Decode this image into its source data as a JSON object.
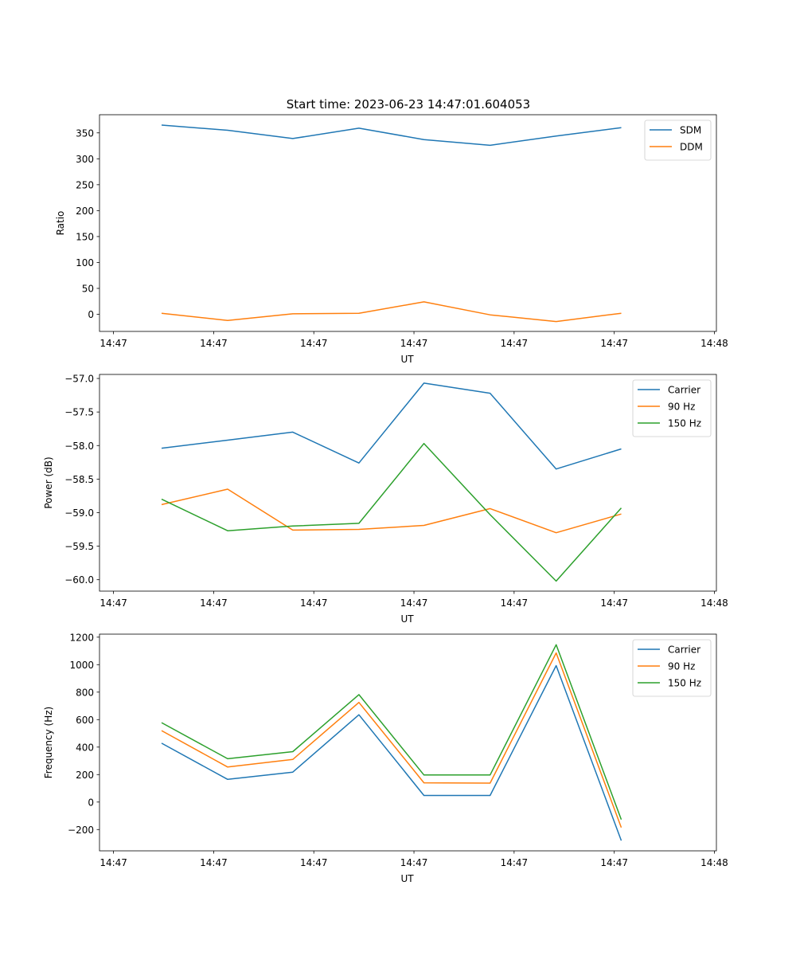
{
  "title": "Start time: 2023-06-23 14:47:01.604053",
  "chart_data": [
    {
      "type": "line",
      "xlabel": "UT",
      "ylabel": "Ratio",
      "x_tick_labels": [
        "14:47",
        "14:47",
        "14:47",
        "14:47",
        "14:47",
        "14:47",
        "14:48"
      ],
      "x_tick_values": [
        0,
        10,
        20,
        30,
        40,
        50,
        60
      ],
      "xlim": [
        -1.4,
        60.2
      ],
      "yticks": [
        0,
        50,
        100,
        150,
        200,
        250,
        300,
        350
      ],
      "ylim": [
        -33,
        385
      ],
      "legend": "top-right",
      "series": [
        {
          "name": "SDM",
          "color": "#1f77b4",
          "x": [
            4.8,
            11.4,
            17.9,
            24.5,
            31.0,
            37.6,
            44.2,
            50.7
          ],
          "values": [
            365,
            355,
            339,
            359,
            337,
            326,
            344,
            360
          ]
        },
        {
          "name": "DDM",
          "color": "#ff7f0e",
          "x": [
            4.8,
            11.4,
            17.9,
            24.5,
            31.0,
            37.6,
            44.2,
            50.7
          ],
          "values": [
            2,
            -12,
            1,
            2,
            24,
            -1,
            -14,
            2
          ]
        }
      ]
    },
    {
      "type": "line",
      "xlabel": "UT",
      "ylabel": "Power (dB)",
      "x_tick_labels": [
        "14:47",
        "14:47",
        "14:47",
        "14:47",
        "14:47",
        "14:47",
        "14:48"
      ],
      "x_tick_values": [
        0,
        10,
        20,
        30,
        40,
        50,
        60
      ],
      "xlim": [
        -1.4,
        60.2
      ],
      "yticks": [
        -60.0,
        -59.5,
        -59.0,
        -58.5,
        -58.0,
        -57.5,
        -57.0
      ],
      "ytick_labels": [
        "−60.0",
        "−59.5",
        "−59.0",
        "−58.5",
        "−58.0",
        "−57.5",
        "−57.0"
      ],
      "ylim": [
        -60.17,
        -56.94
      ],
      "legend": "top-right",
      "series": [
        {
          "name": "Carrier",
          "color": "#1f77b4",
          "x": [
            4.8,
            11.4,
            17.9,
            24.5,
            31.0,
            37.6,
            44.2,
            50.7
          ],
          "values": [
            -58.04,
            -57.92,
            -57.8,
            -58.26,
            -57.07,
            -57.22,
            -58.35,
            -58.05
          ]
        },
        {
          "name": "90 Hz",
          "color": "#ff7f0e",
          "x": [
            4.8,
            11.4,
            17.9,
            24.5,
            31.0,
            37.6,
            44.2,
            50.7
          ],
          "values": [
            -58.88,
            -58.65,
            -59.26,
            -59.25,
            -59.19,
            -58.94,
            -59.3,
            -59.02
          ]
        },
        {
          "name": "150 Hz",
          "color": "#2ca02c",
          "x": [
            4.8,
            11.4,
            17.9,
            24.5,
            31.0,
            37.6,
            44.2,
            50.7
          ],
          "values": [
            -58.8,
            -59.27,
            -59.2,
            -59.16,
            -57.97,
            -59.03,
            -60.02,
            -58.93
          ]
        }
      ]
    },
    {
      "type": "line",
      "xlabel": "UT",
      "ylabel": "Frequency (Hz)",
      "x_tick_labels": [
        "14:47",
        "14:47",
        "14:47",
        "14:47",
        "14:47",
        "14:47",
        "14:48"
      ],
      "x_tick_values": [
        0,
        10,
        20,
        30,
        40,
        50,
        60
      ],
      "xlim": [
        -1.4,
        60.2
      ],
      "yticks": [
        -200,
        0,
        200,
        400,
        600,
        800,
        1000,
        1200
      ],
      "ytick_labels": [
        "−200",
        "0",
        "200",
        "400",
        "600",
        "800",
        "1000",
        "1200"
      ],
      "ylim": [
        -355,
        1222
      ],
      "legend": "top-right",
      "series": [
        {
          "name": "Carrier",
          "color": "#1f77b4",
          "x": [
            4.8,
            11.4,
            17.9,
            24.5,
            31.0,
            37.6,
            44.2,
            50.7
          ],
          "values": [
            428,
            165,
            218,
            635,
            48,
            48,
            993,
            -280
          ]
        },
        {
          "name": "90 Hz",
          "color": "#ff7f0e",
          "x": [
            4.8,
            11.4,
            17.9,
            24.5,
            31.0,
            37.6,
            44.2,
            50.7
          ],
          "values": [
            520,
            255,
            310,
            725,
            140,
            138,
            1085,
            -185
          ]
        },
        {
          "name": "150 Hz",
          "color": "#2ca02c",
          "x": [
            4.8,
            11.4,
            17.9,
            24.5,
            31.0,
            37.6,
            44.2,
            50.7
          ],
          "values": [
            578,
            315,
            367,
            782,
            197,
            197,
            1145,
            -128
          ]
        }
      ]
    }
  ]
}
